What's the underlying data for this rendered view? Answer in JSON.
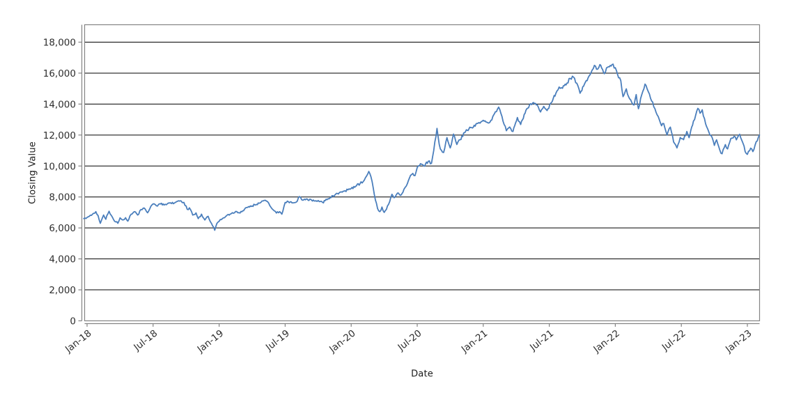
{
  "chart_data": {
    "type": "line",
    "title": "",
    "xlabel": "Date",
    "ylabel": "Closing Value",
    "legend": "none",
    "grid": "horizontal black gridlines every 2000",
    "ylim": [
      0,
      18000
    ],
    "x_unit": "months since Jan-2018",
    "xlim_months": [
      -0.3,
      61.1
    ],
    "y_ticks": [
      {
        "v": 0,
        "label": "0"
      },
      {
        "v": 2000,
        "label": "2,000"
      },
      {
        "v": 4000,
        "label": "4,000"
      },
      {
        "v": 6000,
        "label": "6,000"
      },
      {
        "v": 8000,
        "label": "8,000"
      },
      {
        "v": 10000,
        "label": "10,000"
      },
      {
        "v": 12000,
        "label": "12,000"
      },
      {
        "v": 14000,
        "label": "14,000"
      },
      {
        "v": 16000,
        "label": "16,000"
      },
      {
        "v": 18000,
        "label": "18,000"
      }
    ],
    "x_ticks": [
      {
        "t": 0,
        "label": "Jan-18"
      },
      {
        "t": 6,
        "label": "Jul-18"
      },
      {
        "t": 12,
        "label": "Jan-19"
      },
      {
        "t": 18,
        "label": "Jul-19"
      },
      {
        "t": 24,
        "label": "Jan-20"
      },
      {
        "t": 30,
        "label": "Jul-20"
      },
      {
        "t": 36,
        "label": "Jan-21"
      },
      {
        "t": 42,
        "label": "Jul-21"
      },
      {
        "t": 48,
        "label": "Jan-22"
      },
      {
        "t": 54,
        "label": "Jul-22"
      },
      {
        "t": 60,
        "label": "Jan-23"
      }
    ],
    "series": [
      {
        "name": "Closing Value",
        "points": [
          [
            -0.3,
            6600
          ],
          [
            0,
            6680
          ],
          [
            0.3,
            6820
          ],
          [
            0.6,
            6950
          ],
          [
            0.8,
            7050
          ],
          [
            1,
            6800
          ],
          [
            1.2,
            6300
          ],
          [
            1.5,
            6830
          ],
          [
            1.7,
            6560
          ],
          [
            2,
            7080
          ],
          [
            2.3,
            6700
          ],
          [
            2.5,
            6430
          ],
          [
            2.8,
            6300
          ],
          [
            3,
            6650
          ],
          [
            3.2,
            6520
          ],
          [
            3.5,
            6660
          ],
          [
            3.7,
            6440
          ],
          [
            4,
            6880
          ],
          [
            4.3,
            7050
          ],
          [
            4.6,
            6830
          ],
          [
            4.9,
            7190
          ],
          [
            5.2,
            7280
          ],
          [
            5.5,
            6980
          ],
          [
            5.8,
            7400
          ],
          [
            6,
            7550
          ],
          [
            6.3,
            7430
          ],
          [
            6.6,
            7560
          ],
          [
            7,
            7480
          ],
          [
            7.3,
            7560
          ],
          [
            7.6,
            7620
          ],
          [
            8,
            7640
          ],
          [
            8.4,
            7730
          ],
          [
            8.8,
            7650
          ],
          [
            9.1,
            7200
          ],
          [
            9.3,
            7300
          ],
          [
            9.6,
            6830
          ],
          [
            9.9,
            6970
          ],
          [
            10.1,
            6600
          ],
          [
            10.4,
            6890
          ],
          [
            10.7,
            6510
          ],
          [
            11,
            6750
          ],
          [
            11.3,
            6300
          ],
          [
            11.6,
            5850
          ],
          [
            11.8,
            6290
          ],
          [
            12,
            6430
          ],
          [
            12.3,
            6600
          ],
          [
            12.6,
            6750
          ],
          [
            13,
            6890
          ],
          [
            13.3,
            6950
          ],
          [
            13.6,
            7060
          ],
          [
            13.9,
            6960
          ],
          [
            14.3,
            7200
          ],
          [
            14.6,
            7330
          ],
          [
            15,
            7420
          ],
          [
            15.4,
            7520
          ],
          [
            15.8,
            7650
          ],
          [
            16.1,
            7780
          ],
          [
            16.4,
            7700
          ],
          [
            16.7,
            7340
          ],
          [
            17,
            7110
          ],
          [
            17.2,
            6960
          ],
          [
            17.5,
            7050
          ],
          [
            17.7,
            6890
          ],
          [
            18,
            7640
          ],
          [
            18.3,
            7690
          ],
          [
            18.7,
            7620
          ],
          [
            19,
            7660
          ],
          [
            19.3,
            8030
          ],
          [
            19.6,
            7790
          ],
          [
            20,
            7870
          ],
          [
            20.4,
            7800
          ],
          [
            20.8,
            7760
          ],
          [
            21.1,
            7700
          ],
          [
            21.4,
            7650
          ],
          [
            21.8,
            7820
          ],
          [
            22.1,
            7960
          ],
          [
            22.5,
            8110
          ],
          [
            23.1,
            8330
          ],
          [
            23.7,
            8460
          ],
          [
            24,
            8550
          ],
          [
            24.4,
            8690
          ],
          [
            24.8,
            8850
          ],
          [
            25.1,
            9000
          ],
          [
            25.4,
            9350
          ],
          [
            25.6,
            9650
          ],
          [
            25.8,
            9300
          ],
          [
            26,
            8600
          ],
          [
            26.2,
            7800
          ],
          [
            26.4,
            7250
          ],
          [
            26.6,
            7050
          ],
          [
            26.8,
            7350
          ],
          [
            27,
            7000
          ],
          [
            27.2,
            7200
          ],
          [
            27.5,
            7700
          ],
          [
            27.7,
            8170
          ],
          [
            27.9,
            7950
          ],
          [
            28.2,
            8250
          ],
          [
            28.5,
            8100
          ],
          [
            28.8,
            8500
          ],
          [
            29.1,
            8850
          ],
          [
            29.4,
            9400
          ],
          [
            29.6,
            9520
          ],
          [
            29.8,
            9380
          ],
          [
            30,
            9900
          ],
          [
            30.3,
            10150
          ],
          [
            30.6,
            10000
          ],
          [
            31,
            10300
          ],
          [
            31.3,
            10180
          ],
          [
            31.5,
            11000
          ],
          [
            31.8,
            12430
          ],
          [
            32,
            11400
          ],
          [
            32.1,
            11100
          ],
          [
            32.4,
            10870
          ],
          [
            32.7,
            11830
          ],
          [
            33,
            11170
          ],
          [
            33.3,
            12060
          ],
          [
            33.6,
            11390
          ],
          [
            33.9,
            11700
          ],
          [
            34.3,
            12150
          ],
          [
            34.7,
            12400
          ],
          [
            35.1,
            12510
          ],
          [
            35.5,
            12750
          ],
          [
            35.8,
            12850
          ],
          [
            36,
            12950
          ],
          [
            36.4,
            12800
          ],
          [
            36.7,
            12950
          ],
          [
            37.1,
            13500
          ],
          [
            37.4,
            13800
          ],
          [
            37.7,
            13200
          ],
          [
            37.9,
            12680
          ],
          [
            38.1,
            12280
          ],
          [
            38.4,
            12520
          ],
          [
            38.7,
            12230
          ],
          [
            39.1,
            13130
          ],
          [
            39.4,
            12680
          ],
          [
            39.8,
            13400
          ],
          [
            40.2,
            13940
          ],
          [
            40.5,
            14080
          ],
          [
            40.9,
            13950
          ],
          [
            41.2,
            13490
          ],
          [
            41.5,
            13850
          ],
          [
            41.8,
            13580
          ],
          [
            42.2,
            14100
          ],
          [
            42.6,
            14700
          ],
          [
            42.9,
            15100
          ],
          [
            43.2,
            15020
          ],
          [
            43.6,
            15350
          ],
          [
            43.9,
            15660
          ],
          [
            44.2,
            15740
          ],
          [
            44.5,
            15350
          ],
          [
            44.8,
            14700
          ],
          [
            45.2,
            15300
          ],
          [
            45.6,
            15800
          ],
          [
            45.9,
            16200
          ],
          [
            46.1,
            16500
          ],
          [
            46.3,
            16250
          ],
          [
            46.6,
            16550
          ],
          [
            47,
            15960
          ],
          [
            47.3,
            16380
          ],
          [
            47.7,
            16550
          ],
          [
            48,
            16350
          ],
          [
            48.3,
            15700
          ],
          [
            48.5,
            15510
          ],
          [
            48.7,
            14480
          ],
          [
            49,
            14980
          ],
          [
            49.2,
            14480
          ],
          [
            49.5,
            14100
          ],
          [
            49.7,
            13940
          ],
          [
            49.9,
            14610
          ],
          [
            50.1,
            13700
          ],
          [
            50.4,
            14600
          ],
          [
            50.7,
            15290
          ],
          [
            51,
            14800
          ],
          [
            51.3,
            14200
          ],
          [
            51.6,
            13700
          ],
          [
            51.9,
            13200
          ],
          [
            52.2,
            12600
          ],
          [
            52.4,
            12740
          ],
          [
            52.7,
            12000
          ],
          [
            53,
            12510
          ],
          [
            53.3,
            11550
          ],
          [
            53.6,
            11170
          ],
          [
            53.9,
            11840
          ],
          [
            54.2,
            11700
          ],
          [
            54.5,
            12230
          ],
          [
            54.7,
            11830
          ],
          [
            55.1,
            12900
          ],
          [
            55.3,
            13270
          ],
          [
            55.5,
            13720
          ],
          [
            55.7,
            13410
          ],
          [
            55.9,
            13630
          ],
          [
            56.2,
            12730
          ],
          [
            56.5,
            12200
          ],
          [
            56.8,
            11840
          ],
          [
            57,
            11330
          ],
          [
            57.2,
            11690
          ],
          [
            57.5,
            11020
          ],
          [
            57.7,
            10790
          ],
          [
            58,
            11380
          ],
          [
            58.2,
            11100
          ],
          [
            58.5,
            11780
          ],
          [
            58.8,
            11920
          ],
          [
            59,
            11690
          ],
          [
            59.3,
            12050
          ],
          [
            59.6,
            11470
          ],
          [
            59.8,
            10930
          ],
          [
            60,
            10750
          ],
          [
            60.3,
            11150
          ],
          [
            60.5,
            10930
          ],
          [
            60.8,
            11560
          ],
          [
            61.1,
            12000
          ]
        ]
      }
    ]
  },
  "colors": {
    "line": "#4a7ebc",
    "gridline": "#000000",
    "axis_border": "#848484",
    "tick_label": "#2e2e2e",
    "background": "#ffffff"
  }
}
